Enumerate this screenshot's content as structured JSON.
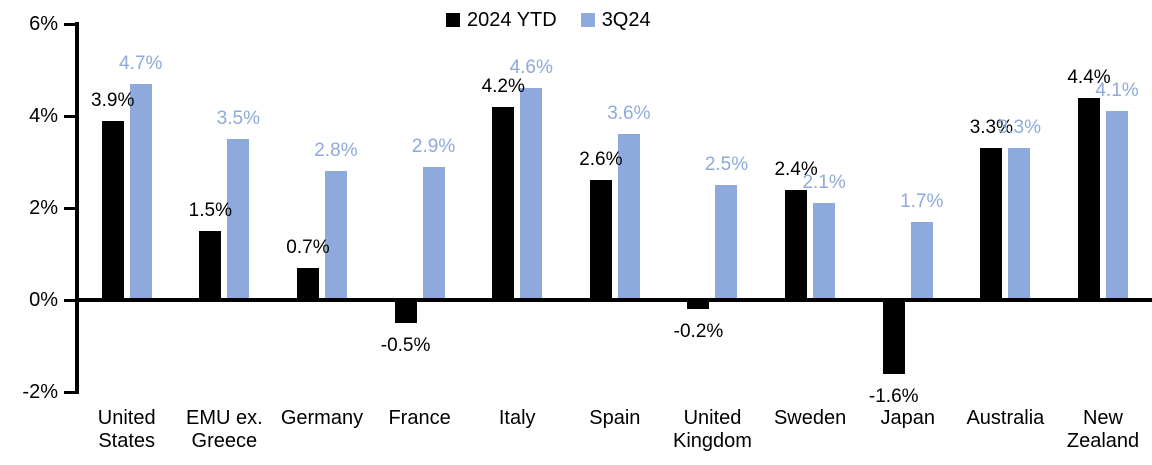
{
  "chart_data": {
    "type": "bar",
    "title": "",
    "xlabel": "",
    "ylabel": "",
    "categories": [
      "United States",
      "EMU ex. Greece",
      "Germany",
      "France",
      "Italy",
      "Spain",
      "United Kingdom",
      "Sweden",
      "Japan",
      "Australia",
      "New Zealand"
    ],
    "category_display": [
      "United\nStates",
      "EMU ex.\nGreece",
      "Germany",
      "France",
      "Italy",
      "Spain",
      "United\nKingdom",
      "Sweden",
      "Japan",
      "Australia",
      "New\nZealand"
    ],
    "series": [
      {
        "name": "2024 YTD",
        "color": "#000000",
        "values": [
          3.9,
          1.5,
          0.7,
          -0.5,
          4.2,
          2.6,
          -0.2,
          2.4,
          -1.6,
          3.3,
          4.4
        ]
      },
      {
        "name": "3Q24",
        "color": "#8EA9DB",
        "values": [
          4.7,
          3.5,
          2.8,
          2.9,
          4.6,
          3.6,
          2.5,
          2.1,
          1.7,
          3.3,
          4.1
        ]
      }
    ],
    "data_labels": [
      "3.9%",
      "1.5%",
      "0.7%",
      "-0.5%",
      "4.2%",
      "2.6%",
      "-0.2%",
      "2.4%",
      "-1.6%",
      "3.3%",
      "4.4%",
      "4.7%",
      "3.5%",
      "2.8%",
      "2.9%",
      "4.6%",
      "3.6%",
      "2.5%",
      "2.1%",
      "1.7%",
      "3.3%",
      "4.1%"
    ],
    "data_label_format": "0.0%",
    "ylim": [
      -2,
      6
    ],
    "yticks": [
      {
        "value": 6,
        "label": "6%"
      },
      {
        "value": 4,
        "label": "4%"
      },
      {
        "value": 2,
        "label": "2%"
      },
      {
        "value": 0,
        "label": "0%"
      },
      {
        "value": -2,
        "label": "-2%"
      }
    ],
    "grid": false,
    "legend_position": "top-center",
    "axis_color": "#000000",
    "background_color": "#FFFFFF"
  }
}
